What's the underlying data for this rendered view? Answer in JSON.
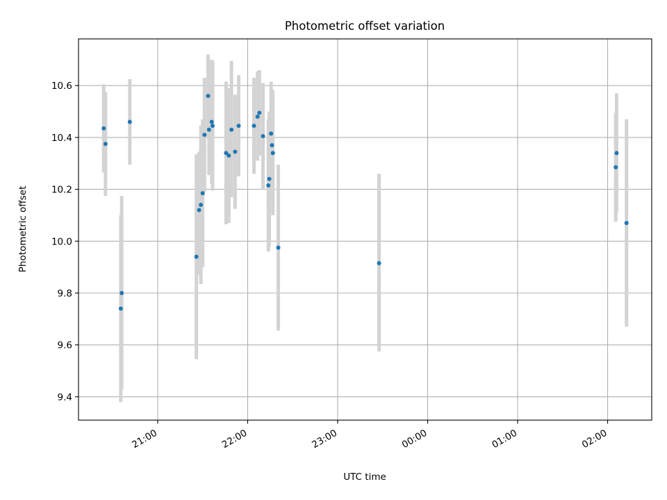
{
  "chart_data": {
    "type": "scatter",
    "title": "Photometric offset variation",
    "xlabel": "UTC time",
    "ylabel": "Photometric offset",
    "x_unit": "hours since 20:00 UTC",
    "xlim": [
      0.12,
      6.49
    ],
    "ylim": [
      9.31,
      10.78
    ],
    "grid": true,
    "x_ticks": [
      {
        "value": 1,
        "label": "21:00"
      },
      {
        "value": 2,
        "label": "22:00"
      },
      {
        "value": 3,
        "label": "23:00"
      },
      {
        "value": 4,
        "label": "00:00"
      },
      {
        "value": 5,
        "label": "01:00"
      },
      {
        "value": 6,
        "label": "02:00"
      }
    ],
    "y_ticks": [
      {
        "value": 9.4,
        "label": "9.4"
      },
      {
        "value": 9.6,
        "label": "9.6"
      },
      {
        "value": 9.8,
        "label": "9.8"
      },
      {
        "value": 10.0,
        "label": "10.0"
      },
      {
        "value": 10.2,
        "label": "10.2"
      },
      {
        "value": 10.4,
        "label": "10.4"
      },
      {
        "value": 10.6,
        "label": "10.6"
      }
    ],
    "marker_color": "#1f77b4",
    "errorbar_color": "#d3d3d3",
    "points": [
      {
        "x": 0.4,
        "y": 10.435,
        "lo": 10.265,
        "hi": 10.605
      },
      {
        "x": 0.42,
        "y": 10.375,
        "lo": 10.175,
        "hi": 10.575
      },
      {
        "x": 0.59,
        "y": 9.74,
        "lo": 9.38,
        "hi": 10.1
      },
      {
        "x": 0.6,
        "y": 9.8,
        "lo": 9.43,
        "hi": 10.175
      },
      {
        "x": 0.69,
        "y": 10.46,
        "lo": 10.295,
        "hi": 10.625
      },
      {
        "x": 1.43,
        "y": 9.94,
        "lo": 9.545,
        "hi": 10.335
      },
      {
        "x": 1.46,
        "y": 10.12,
        "lo": 9.87,
        "hi": 10.345
      },
      {
        "x": 1.48,
        "y": 10.14,
        "lo": 9.835,
        "hi": 10.445
      },
      {
        "x": 1.5,
        "y": 10.185,
        "lo": 9.9,
        "hi": 10.47
      },
      {
        "x": 1.52,
        "y": 10.41,
        "lo": 10.19,
        "hi": 10.63
      },
      {
        "x": 1.56,
        "y": 10.56,
        "lo": 10.4,
        "hi": 10.72
      },
      {
        "x": 1.57,
        "y": 10.43,
        "lo": 10.255,
        "hi": 10.61
      },
      {
        "x": 1.6,
        "y": 10.46,
        "lo": 10.22,
        "hi": 10.7
      },
      {
        "x": 1.61,
        "y": 10.445,
        "lo": 10.195,
        "hi": 10.695
      },
      {
        "x": 1.76,
        "y": 10.34,
        "lo": 10.065,
        "hi": 10.615
      },
      {
        "x": 1.79,
        "y": 10.33,
        "lo": 10.07,
        "hi": 10.59
      },
      {
        "x": 1.82,
        "y": 10.43,
        "lo": 10.17,
        "hi": 10.695
      },
      {
        "x": 1.86,
        "y": 10.345,
        "lo": 10.125,
        "hi": 10.565
      },
      {
        "x": 1.9,
        "y": 10.445,
        "lo": 10.25,
        "hi": 10.64
      },
      {
        "x": 2.07,
        "y": 10.445,
        "lo": 10.26,
        "hi": 10.63
      },
      {
        "x": 2.11,
        "y": 10.48,
        "lo": 10.31,
        "hi": 10.655
      },
      {
        "x": 2.13,
        "y": 10.495,
        "lo": 10.33,
        "hi": 10.66
      },
      {
        "x": 2.17,
        "y": 10.405,
        "lo": 10.2,
        "hi": 10.61
      },
      {
        "x": 2.23,
        "y": 10.215,
        "lo": 9.96,
        "hi": 10.47
      },
      {
        "x": 2.24,
        "y": 10.24,
        "lo": 9.98,
        "hi": 10.5
      },
      {
        "x": 2.26,
        "y": 10.415,
        "lo": 10.21,
        "hi": 10.615
      },
      {
        "x": 2.27,
        "y": 10.37,
        "lo": 10.155,
        "hi": 10.585
      },
      {
        "x": 2.28,
        "y": 10.34,
        "lo": 10.1,
        "hi": 10.58
      },
      {
        "x": 2.34,
        "y": 9.975,
        "lo": 9.655,
        "hi": 10.295
      },
      {
        "x": 3.46,
        "y": 9.915,
        "lo": 9.575,
        "hi": 10.26
      },
      {
        "x": 6.09,
        "y": 10.285,
        "lo": 10.075,
        "hi": 10.495
      },
      {
        "x": 6.1,
        "y": 10.34,
        "lo": 10.11,
        "hi": 10.57
      },
      {
        "x": 6.21,
        "y": 10.07,
        "lo": 9.67,
        "hi": 10.47
      }
    ]
  }
}
